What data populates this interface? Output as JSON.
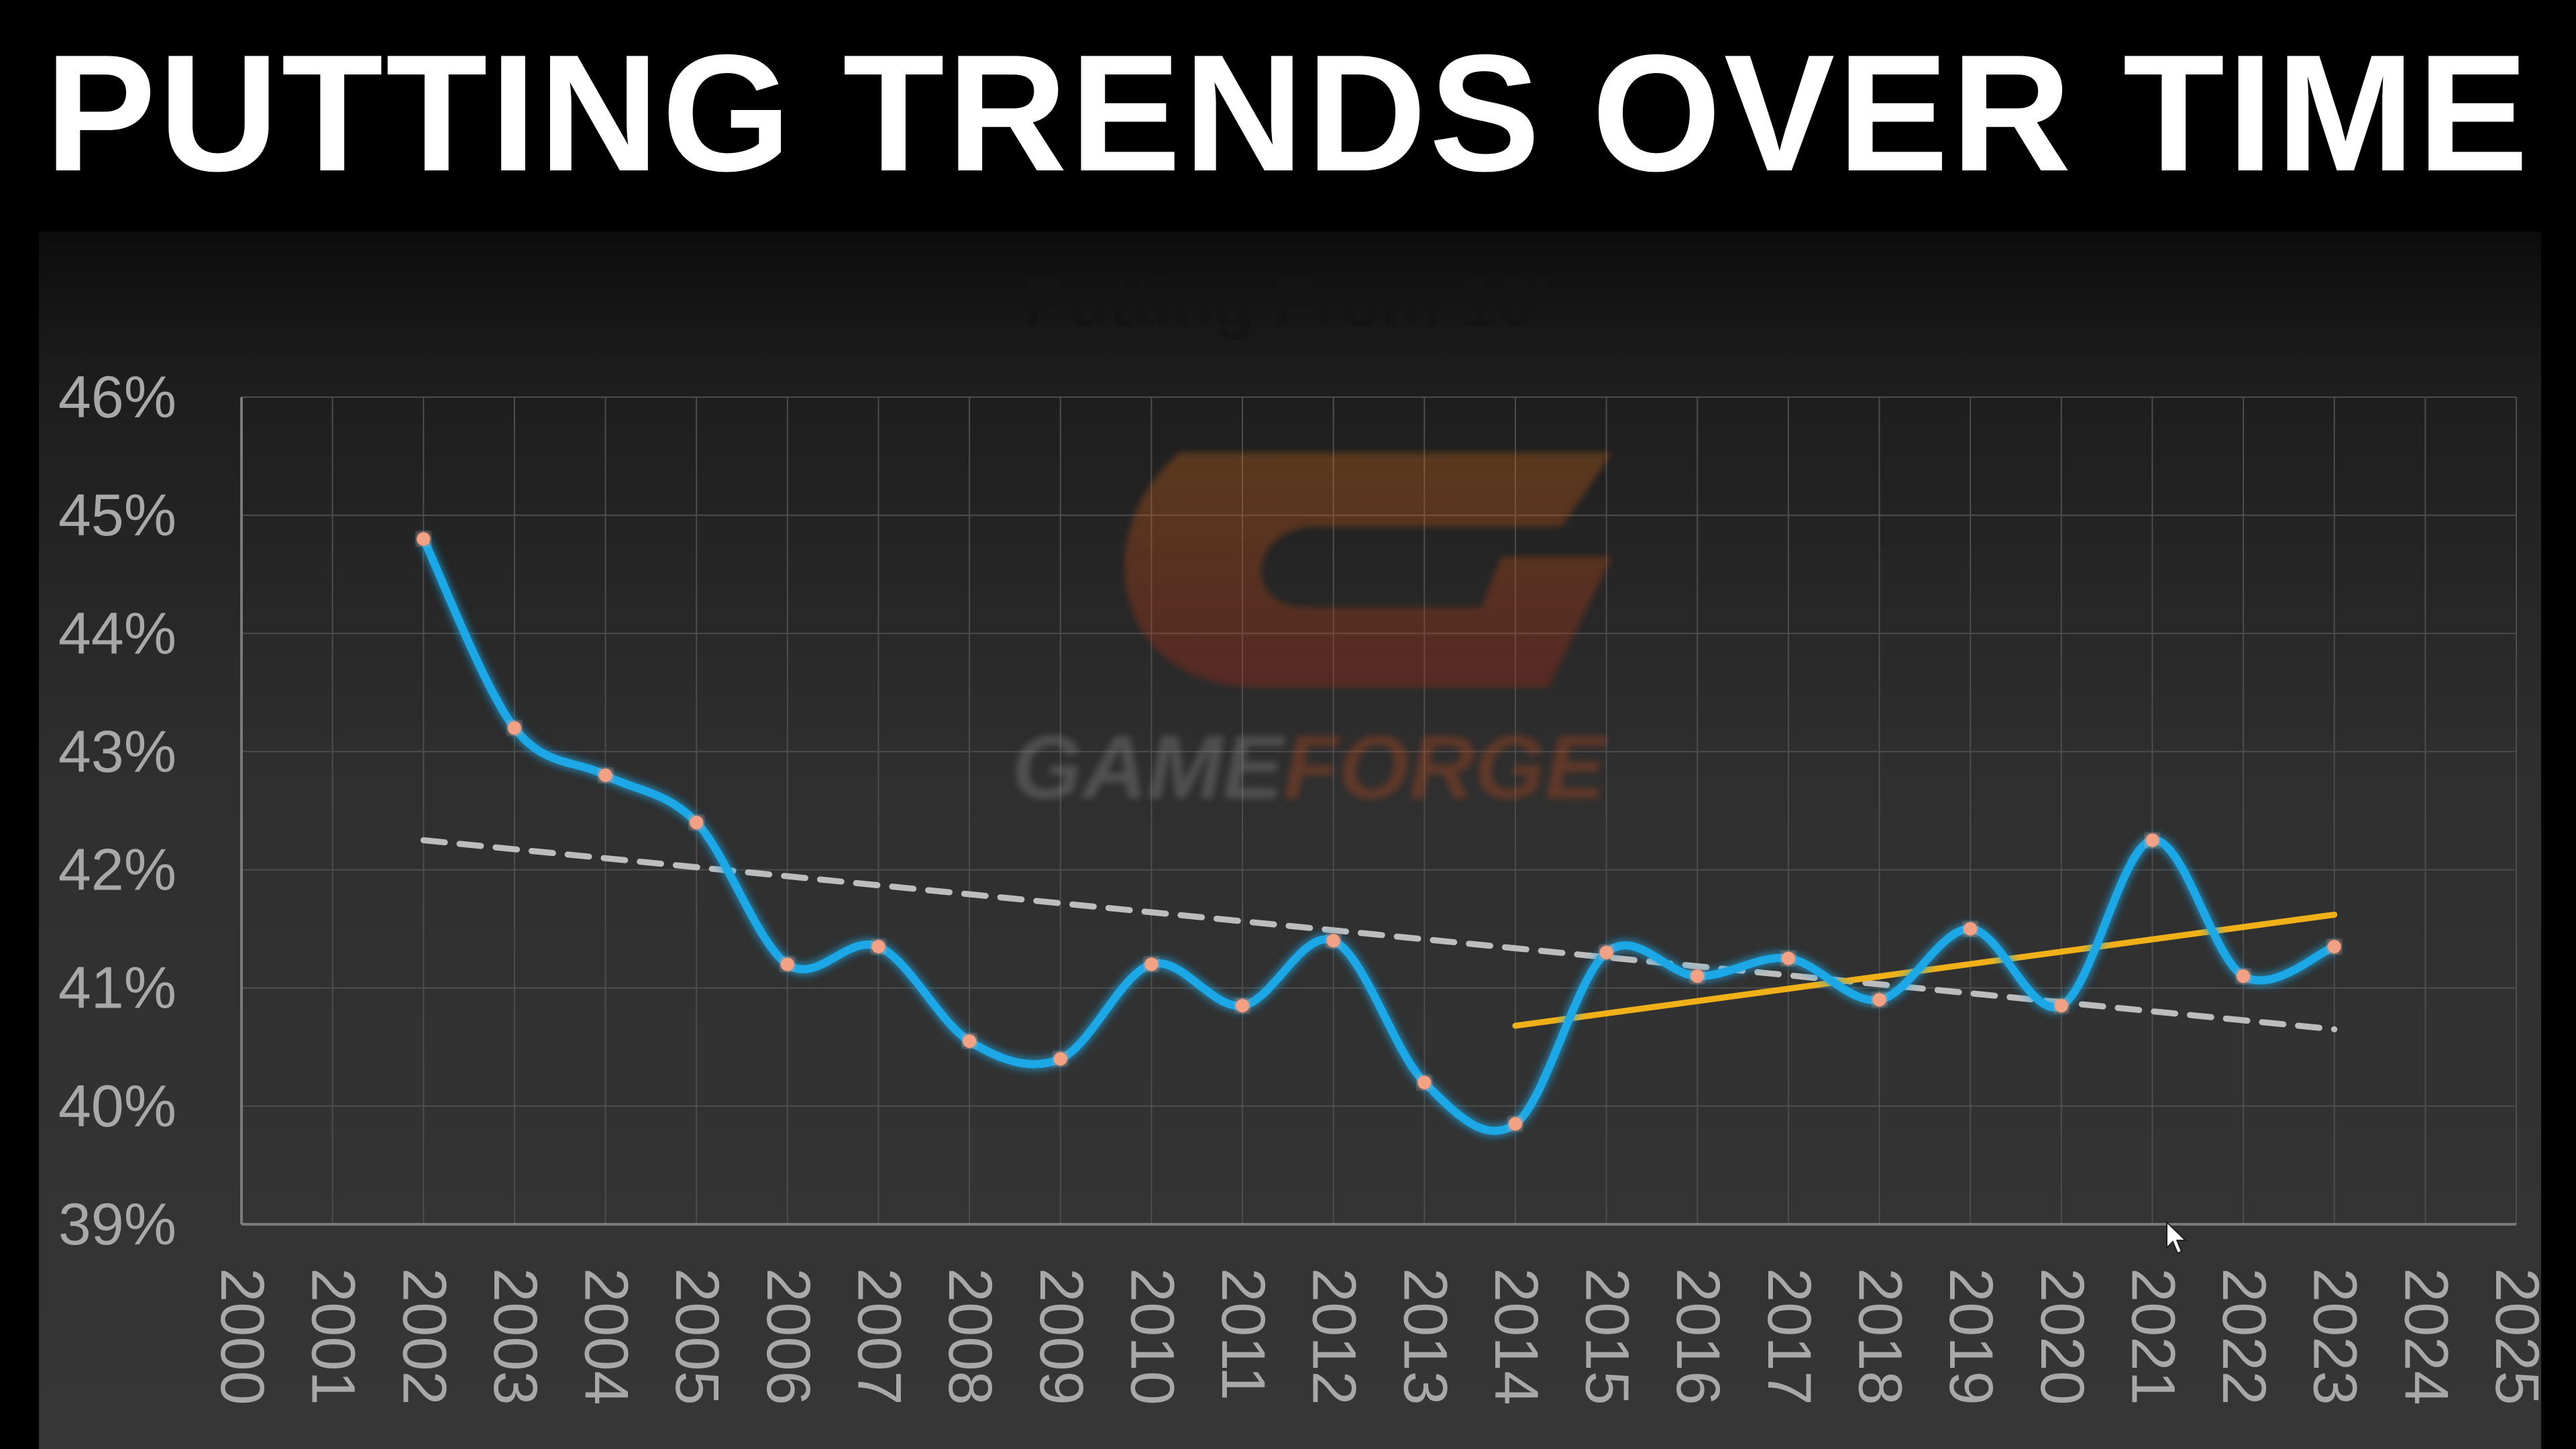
{
  "banner": {
    "title": "PUTTING TRENDS OVER TIME"
  },
  "watermark": {
    "logo_text_left": "GAME",
    "logo_text_right": "FORGE"
  },
  "colors": {
    "line": "#1fa8e6",
    "point": "#f2a184",
    "trend_overall": "#bdbdbd",
    "trend_recent": "#f0b018",
    "grid": "#4d4d4d",
    "tick_text": "#a8a8a8",
    "logo_orange": "#e0521a"
  },
  "chart_data": {
    "type": "line",
    "title": "Putting From 10'",
    "xlabel": "",
    "ylabel": "",
    "x_ticks": [
      "2000",
      "2001",
      "2002",
      "2003",
      "2004",
      "2005",
      "2006",
      "2007",
      "2008",
      "2009",
      "2010",
      "2011",
      "2012",
      "2013",
      "2014",
      "2015",
      "2016",
      "2017",
      "2018",
      "2019",
      "2020",
      "2021",
      "2022",
      "2023",
      "2024",
      "2025"
    ],
    "y_ticks": [
      "39%",
      "40%",
      "41%",
      "42%",
      "43%",
      "44%",
      "45%",
      "46%"
    ],
    "xlim": [
      2000,
      2025
    ],
    "ylim": [
      39,
      46
    ],
    "grid": true,
    "legend": "none",
    "series": [
      {
        "x": [
          2002,
          2003,
          2004,
          2005,
          2006,
          2007,
          2008,
          2009,
          2010,
          2011,
          2012,
          2013,
          2014,
          2015,
          2016,
          2017,
          2018,
          2019,
          2020,
          2021,
          2022,
          2023
        ],
        "values": [
          44.8,
          43.2,
          42.8,
          42.4,
          41.2,
          41.35,
          40.55,
          40.4,
          41.2,
          40.85,
          41.4,
          40.2,
          39.85,
          41.3,
          41.1,
          41.25,
          40.9,
          41.5,
          40.85,
          42.25,
          41.1,
          41.35
        ]
      }
    ],
    "trendlines": [
      {
        "style": "dashed",
        "x": [
          2002,
          2023
        ],
        "values": [
          42.25,
          40.65
        ]
      },
      {
        "style": "solid",
        "x": [
          2014,
          2023
        ],
        "values": [
          40.68,
          41.62
        ]
      }
    ]
  }
}
